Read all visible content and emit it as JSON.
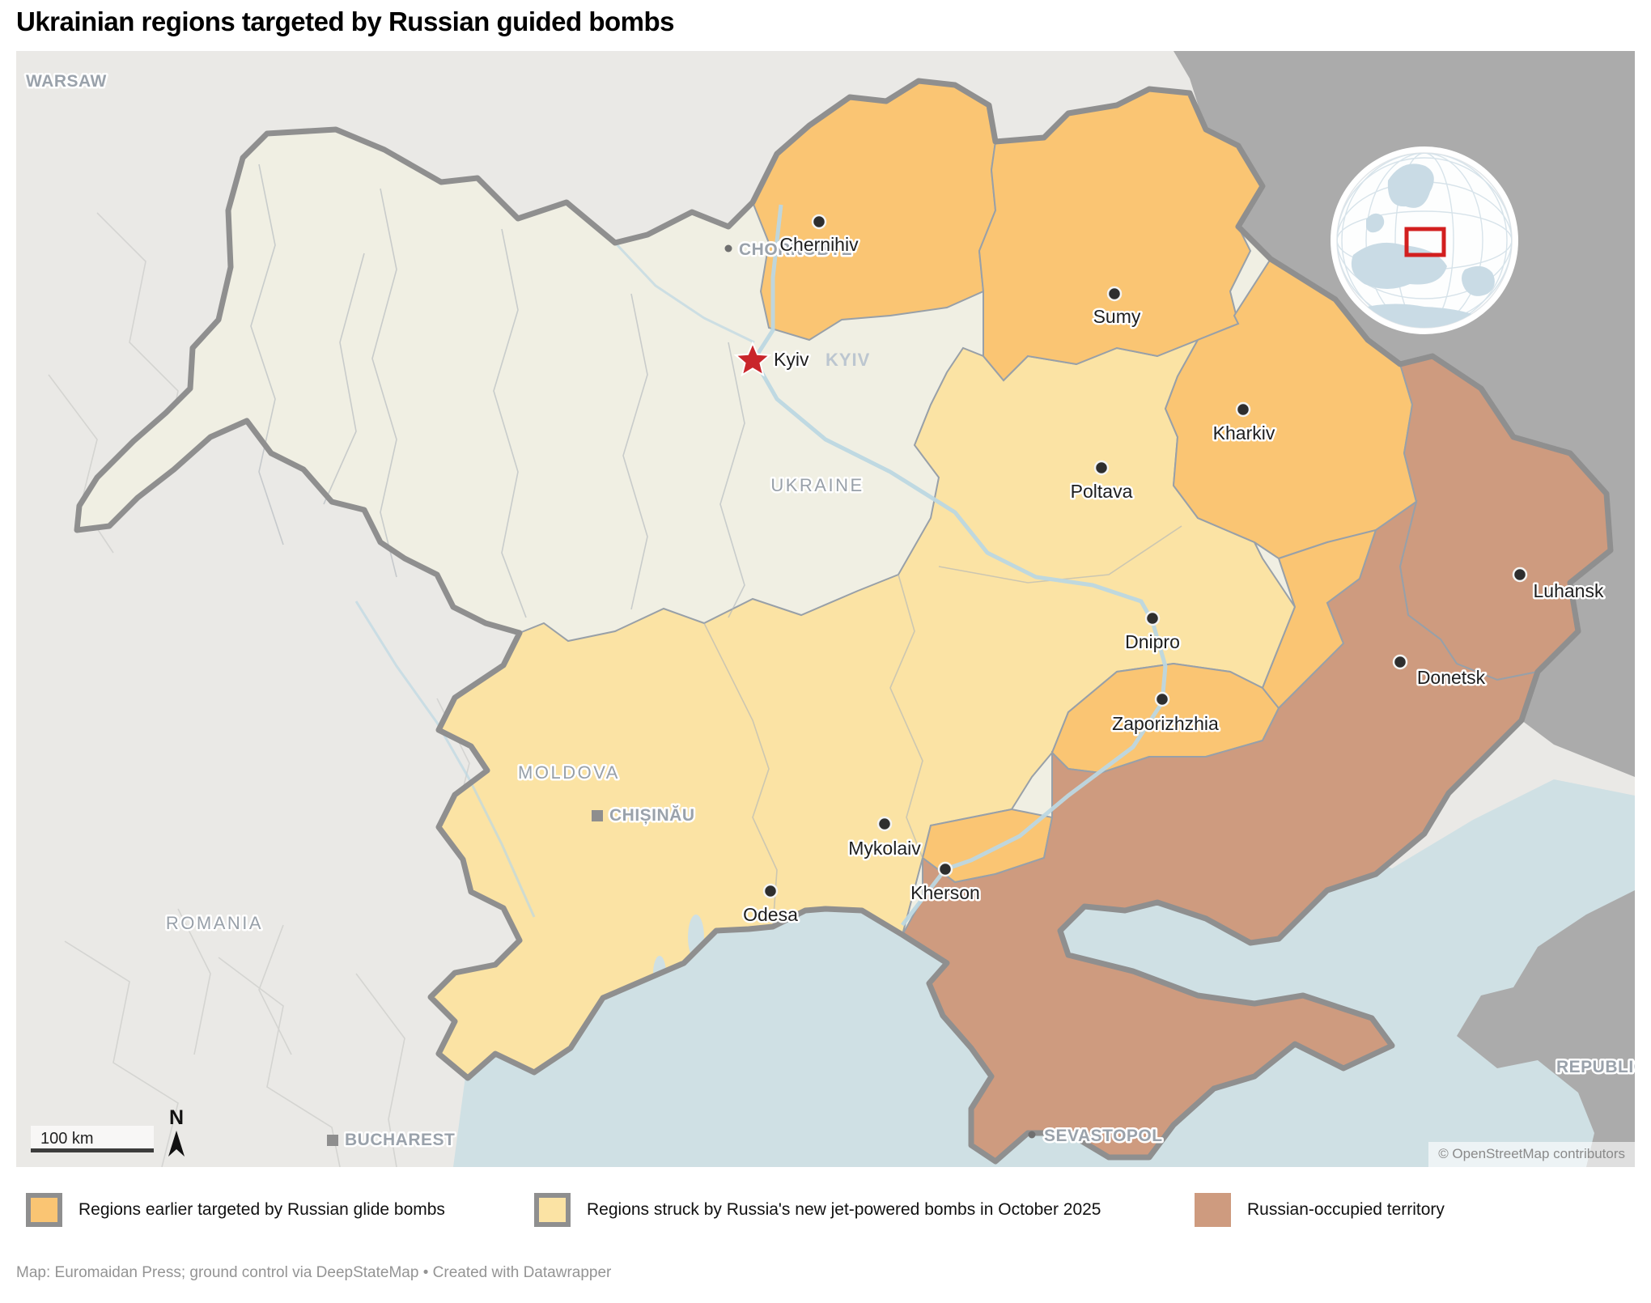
{
  "title": "Ukrainian regions targeted by Russian guided bombs",
  "colors": {
    "glide_bombs": "#FAC573",
    "jet_bombs": "#FBE3A4",
    "occupied": "#CE9B7F",
    "russia_land": "#ABABAB",
    "ukraine_base": "#F0EFE3",
    "sea": "#CFE0E4",
    "outside_land": "#EAE9E6",
    "national_border": "#8F8F8F",
    "capital_star": "#C9252B"
  },
  "map": {
    "capital": {
      "id": "kyiv",
      "label": "Kyiv"
    },
    "cities": [
      {
        "id": "chernihiv",
        "label": "Chernihiv"
      },
      {
        "id": "sumy",
        "label": "Sumy"
      },
      {
        "id": "kharkiv",
        "label": "Kharkiv"
      },
      {
        "id": "poltava",
        "label": "Poltava"
      },
      {
        "id": "luhansk",
        "label": "Luhansk"
      },
      {
        "id": "dnipro",
        "label": "Dnipro"
      },
      {
        "id": "donetsk",
        "label": "Donetsk"
      },
      {
        "id": "zaporizhzhia",
        "label": "Zaporizhzhia"
      },
      {
        "id": "mykolaiv",
        "label": "Mykolaiv"
      },
      {
        "id": "kherson",
        "label": "Kherson"
      },
      {
        "id": "odesa",
        "label": "Odesa"
      }
    ],
    "gray_places": [
      {
        "id": "warsaw",
        "label": "WARSAW",
        "marker": "none"
      },
      {
        "id": "chornobyl",
        "label": "CHORNOBYL",
        "marker": "dot-small"
      },
      {
        "id": "chisinau",
        "label": "CHIȘINĂU",
        "marker": "square"
      },
      {
        "id": "bucharest",
        "label": "BUCHAREST",
        "marker": "square"
      },
      {
        "id": "sevastopol",
        "label": "SEVASTOPOL",
        "marker": "dot-small"
      },
      {
        "id": "republic-of-crimea",
        "label": "REPUBLIC O",
        "marker": "none"
      }
    ],
    "countries": [
      {
        "id": "ukraine",
        "label": "UKRAINE"
      },
      {
        "id": "moldova",
        "label": "MOLDOVA"
      },
      {
        "id": "romania",
        "label": "ROMANIA"
      }
    ],
    "ghost_region_label": "KYIV",
    "scale_label": "100 km",
    "north_label": "N",
    "attribution": "© OpenStreetMap contributors"
  },
  "legend": {
    "items": [
      {
        "label": "Regions earlier targeted by Russian glide bombs",
        "color": "#FAC573",
        "bordered": true
      },
      {
        "label": "Regions struck by Russia's new jet-powered bombs in October 2025",
        "color": "#FBE3A4",
        "bordered": true
      },
      {
        "label": "Russian-occupied territory",
        "color": "#CE9B7F",
        "bordered": false
      }
    ]
  },
  "footer": "Map: Euromaidan Press; ground control via DeepStateMap • Created with Datawrapper"
}
